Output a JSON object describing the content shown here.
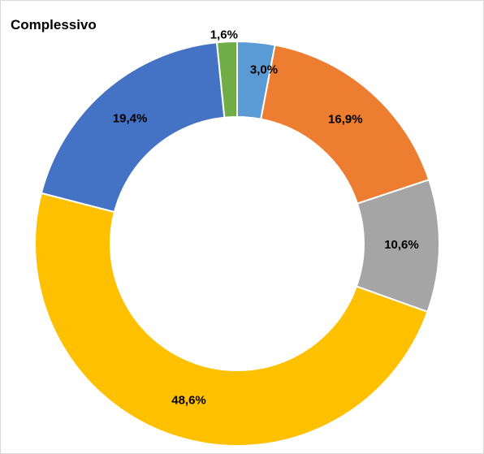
{
  "chart_data": {
    "type": "pie",
    "donut": true,
    "title": "Complessivo",
    "slices": [
      {
        "value": 3.0,
        "label": "3,0%",
        "color": "#5B9BD5"
      },
      {
        "value": 16.9,
        "label": "16,9%",
        "color": "#ED7D31"
      },
      {
        "value": 10.6,
        "label": "10,6%",
        "color": "#A5A5A5"
      },
      {
        "value": 48.6,
        "label": "48,6%",
        "color": "#FFC000"
      },
      {
        "value": 19.4,
        "label": "19,4%",
        "color": "#4472C4"
      },
      {
        "value": 1.6,
        "label": "1,6%",
        "color": "#70AD47"
      }
    ]
  }
}
